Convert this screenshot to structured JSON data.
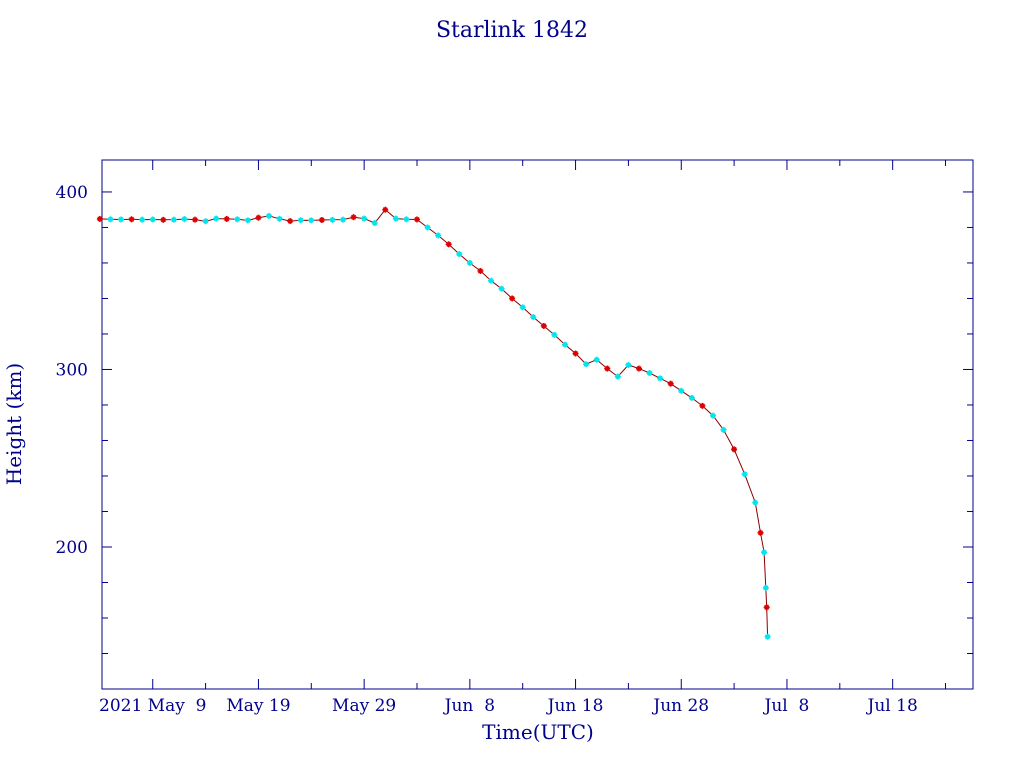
{
  "chart_data": {
    "type": "scatter",
    "title": "Starlink 1842",
    "xlabel": "Time(UTC)",
    "ylabel": "Height (km)",
    "x_ticks": [
      "2021 May  9",
      "May 19",
      "May 29",
      "Jun  8",
      "Jun 18",
      "Jun 28",
      "Jul  8",
      "Jul 18"
    ],
    "x_range_days_from_may9": [
      -4.8,
      77.6
    ],
    "y_ticks": [
      200,
      300,
      400
    ],
    "ylim": [
      120,
      418
    ],
    "grid": false,
    "legend": "none",
    "colors": {
      "axis": "#00008b",
      "line": "#8b0000",
      "marker_a": "#dd0000",
      "marker_b": "#00e5ee"
    },
    "series": [
      {
        "name": "",
        "points": [
          [
            "2021-05-04",
            384.8
          ],
          [
            "2021-05-05",
            384.6
          ],
          [
            "2021-05-06",
            384.5
          ],
          [
            "2021-05-07",
            384.6
          ],
          [
            "2021-05-08",
            384.4
          ],
          [
            "2021-05-09",
            384.5
          ],
          [
            "2021-05-10",
            384.3
          ],
          [
            "2021-05-11",
            384.4
          ],
          [
            "2021-05-12",
            384.7
          ],
          [
            "2021-05-13",
            384.4
          ],
          [
            "2021-05-14",
            383.5
          ],
          [
            "2021-05-15",
            385.0
          ],
          [
            "2021-05-16",
            384.8
          ],
          [
            "2021-05-17",
            384.6
          ],
          [
            "2021-05-18",
            384.0
          ],
          [
            "2021-05-19",
            385.5
          ],
          [
            "2021-05-20",
            386.5
          ],
          [
            "2021-05-21",
            384.9
          ],
          [
            "2021-05-22",
            383.6
          ],
          [
            "2021-05-23",
            384.1
          ],
          [
            "2021-05-24",
            384.0
          ],
          [
            "2021-05-25",
            384.2
          ],
          [
            "2021-05-26",
            384.3
          ],
          [
            "2021-05-27",
            384.4
          ],
          [
            "2021-05-28",
            385.8
          ],
          [
            "2021-05-29",
            385.0
          ],
          [
            "2021-05-30",
            382.5
          ],
          [
            "2021-05-31",
            390.0
          ],
          [
            "2021-06-01",
            385.0
          ],
          [
            "2021-06-02",
            384.6
          ],
          [
            "2021-06-03",
            384.5
          ],
          [
            "2021-06-04",
            380.0
          ],
          [
            "2021-06-05",
            375.5
          ],
          [
            "2021-06-06",
            370.5
          ],
          [
            "2021-06-07",
            365.0
          ],
          [
            "2021-06-08",
            360.0
          ],
          [
            "2021-06-09",
            355.5
          ],
          [
            "2021-06-10",
            350.0
          ],
          [
            "2021-06-11",
            345.5
          ],
          [
            "2021-06-12",
            340.0
          ],
          [
            "2021-06-13",
            335.0
          ],
          [
            "2021-06-14",
            329.5
          ],
          [
            "2021-06-15",
            324.5
          ],
          [
            "2021-06-16",
            319.5
          ],
          [
            "2021-06-17",
            314.0
          ],
          [
            "2021-06-18",
            309.0
          ],
          [
            "2021-06-19",
            303.0
          ],
          [
            "2021-06-20",
            305.5
          ],
          [
            "2021-06-21",
            300.5
          ],
          [
            "2021-06-22",
            296.0
          ],
          [
            "2021-06-23",
            302.5
          ],
          [
            "2021-06-24",
            300.5
          ],
          [
            "2021-06-25",
            298.0
          ],
          [
            "2021-06-26",
            295.0
          ],
          [
            "2021-06-27",
            292.0
          ],
          [
            "2021-06-28",
            288.0
          ],
          [
            "2021-06-29",
            284.0
          ],
          [
            "2021-06-30",
            279.5
          ],
          [
            "2021-07-01",
            274.0
          ],
          [
            "2021-07-02",
            266.0
          ],
          [
            "2021-07-03",
            255.0
          ],
          [
            "2021-07-04",
            241.0
          ],
          [
            "2021-07-05",
            225.0
          ],
          [
            "2021-07-05T12:00",
            208.0
          ],
          [
            "2021-07-05T20:00",
            197.0
          ],
          [
            "2021-07-06",
            177.0
          ],
          [
            "2021-07-06T02:00",
            166.0
          ],
          [
            "2021-07-06T04:00",
            149.5
          ]
        ]
      }
    ]
  }
}
